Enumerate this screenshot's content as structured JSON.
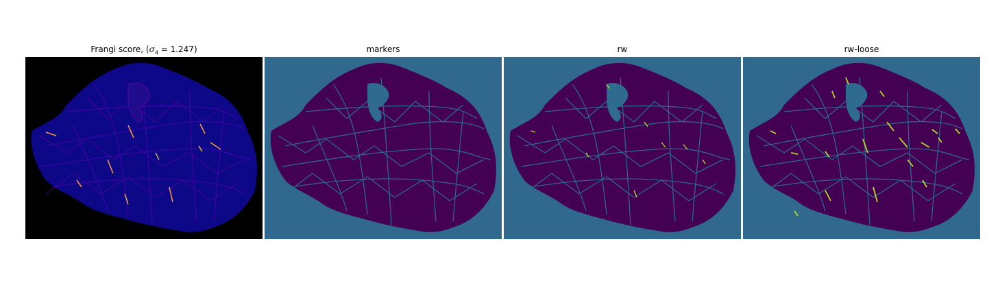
{
  "panels": [
    {
      "title_prefix": "Frangi score, (",
      "title_symbol": "σ",
      "title_subscript": "4",
      "title_value": " = 1.247)",
      "colormap": "plasma-on-black"
    },
    {
      "title": "markers",
      "colormap": "viridis"
    },
    {
      "title": "rw",
      "colormap": "viridis"
    },
    {
      "title": "rw-loose",
      "colormap": "viridis"
    }
  ],
  "colors": {
    "frangi_background": "#000000",
    "frangi_tissue": "#0d0887",
    "frangi_vessels": "#3b04a8",
    "frangi_highlight": "#f89540",
    "frangi_peak": "#fdd835",
    "viridis_background": "#31688e",
    "viridis_tissue": "#440154",
    "viridis_mesh": "#2f6b8e",
    "viridis_highlight": "#b5de2b"
  }
}
